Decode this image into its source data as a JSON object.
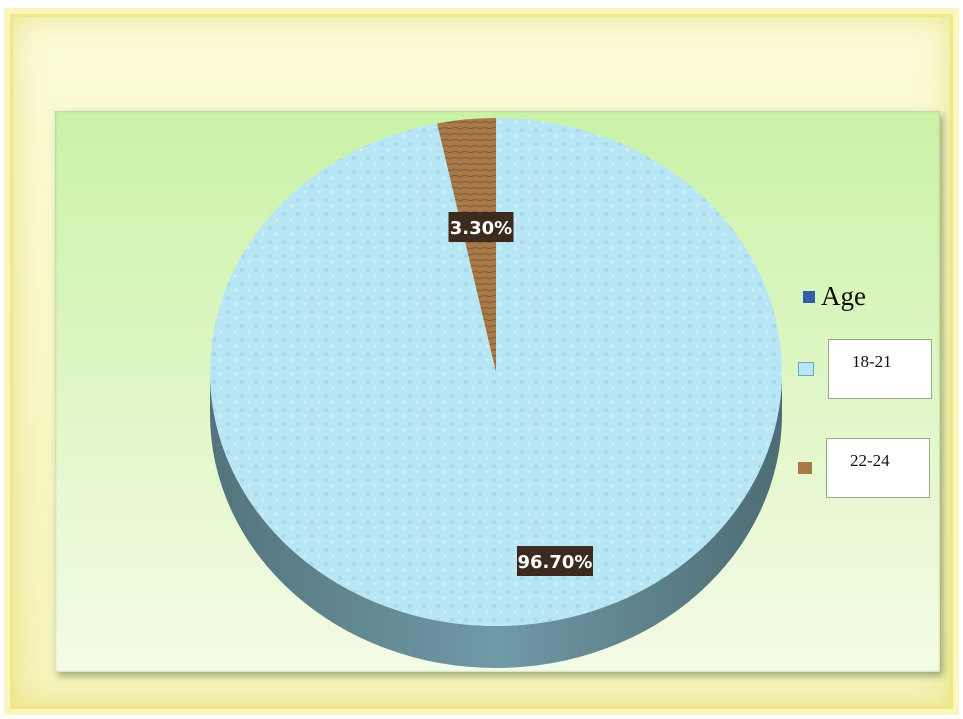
{
  "chart_data": {
    "type": "pie",
    "title": "",
    "legend_title": "Age",
    "legend_placement": "right",
    "slices": [
      {
        "label": "18-21",
        "value": 96.7,
        "data_label": "96.70%",
        "color": "#b8e6f4",
        "side_color": "#6f9aa6"
      },
      {
        "label": "22-24",
        "value": 3.3,
        "data_label": "3.30%",
        "color": "#a87a4a",
        "side_color": "#6e4e2e"
      }
    ]
  },
  "colors": {
    "legend_title_marker": "#2e5fa8",
    "data_label_bg": "#3c2a1f",
    "data_label_text": "#ffffff"
  }
}
